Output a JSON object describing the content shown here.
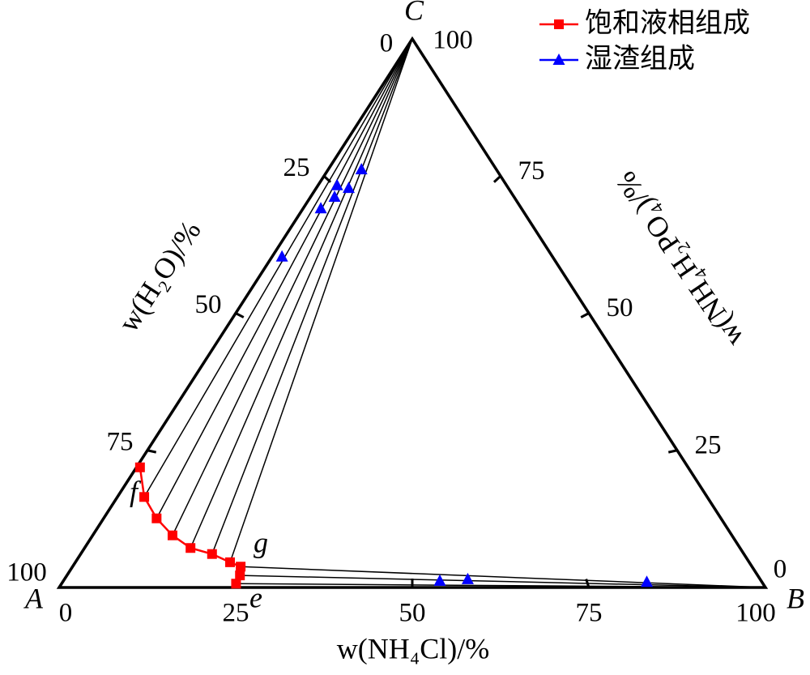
{
  "chart_data": {
    "type": "ternary",
    "vertices": [
      "A",
      "B",
      "C"
    ],
    "axes": {
      "bottom": {
        "label": "w(NH₄Cl)/%",
        "ticks": [
          0,
          25,
          50,
          75,
          100
        ]
      },
      "left": {
        "label": "w(H₂O)/%",
        "ticks": [
          0,
          25,
          50,
          75,
          100
        ]
      },
      "right": {
        "label": "w(NH₄H₂PO₄)/%",
        "ticks": [
          0,
          25,
          50,
          75,
          100
        ]
      }
    },
    "series": [
      {
        "name": "饱和液相组成",
        "color": "#ff0000",
        "marker": "square",
        "line": true,
        "values": [
          [
            0.5,
            21.9
          ],
          [
            3.8,
            16.5
          ],
          [
            7.5,
            12.6
          ],
          [
            11.3,
            9.5
          ],
          [
            15.0,
            7.2
          ],
          [
            18.6,
            6.1
          ],
          [
            21.9,
            4.6
          ],
          [
            23.8,
            3.8
          ],
          [
            24.5,
            2.2
          ],
          [
            24.7,
            0.7
          ]
        ]
      },
      {
        "name": "湿渣组成",
        "color": "#0000ff",
        "marker": "triangle",
        "line": false,
        "values": [
          null,
          [
            1.4,
            60.3
          ],
          [
            2.5,
            69.1
          ],
          [
            3.4,
            71.2
          ],
          [
            2.7,
            73.3
          ],
          [
            4.6,
            72.8
          ],
          [
            4.7,
            76.2
          ],
          [
            82.7,
            1.0
          ],
          [
            57.1,
            1.5
          ],
          [
            53.3,
            1.2
          ]
        ]
      }
    ],
    "annotations": [
      {
        "text": "f"
      },
      {
        "text": "g"
      },
      {
        "text": "e"
      }
    ],
    "legend": "top-right"
  }
}
